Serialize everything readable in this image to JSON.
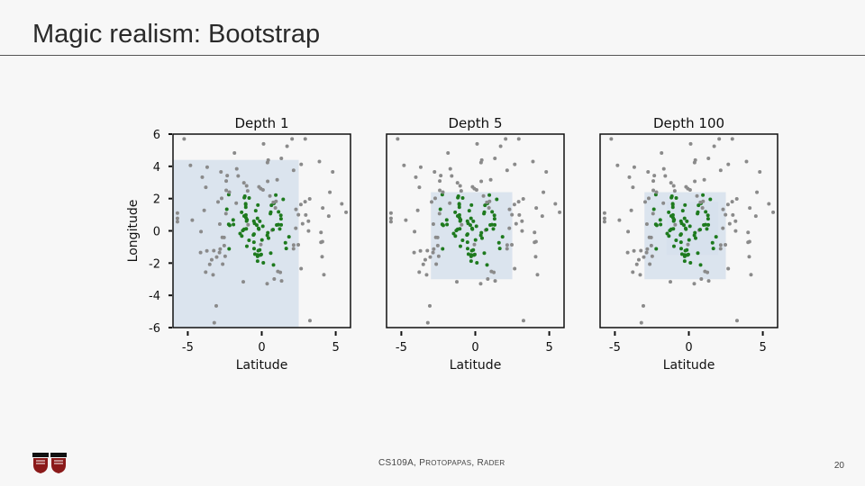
{
  "slide": {
    "title": "Magic realism: Bootstrap",
    "footer_parts": [
      "CS109A, P",
      "ROTOPAPAS",
      ", R",
      "ADER"
    ],
    "page_number": "20"
  },
  "colors": {
    "in_sample": "#1e7a1e",
    "out_sample": "#8a8a8a",
    "region": "#d6e0ec",
    "frame": "#111111"
  },
  "chart_data": [
    {
      "type": "scatter",
      "title": "Depth 1",
      "xlabel": "Latitude",
      "ylabel": "Longitude",
      "xlim": [
        -6,
        6
      ],
      "ylim": [
        -6,
        6
      ],
      "xticks": [
        -5,
        0,
        5
      ],
      "yticks": [
        6,
        4,
        2,
        0,
        -2,
        -4,
        -6
      ],
      "regions": [
        {
          "x0": -6,
          "x1": 2.5,
          "y0": -6,
          "y1": 4.4
        }
      ]
    },
    {
      "type": "scatter",
      "title": "Depth 5",
      "xlabel": "Latitude",
      "ylabel": "",
      "xlim": [
        -6,
        6
      ],
      "ylim": [
        -6,
        6
      ],
      "xticks": [
        -5,
        0,
        5
      ],
      "yticks": [],
      "regions": [
        {
          "x0": -3,
          "x1": 2.5,
          "y0": -3,
          "y1": 2.4
        }
      ]
    },
    {
      "type": "scatter",
      "title": "Depth 100",
      "xlabel": "Latitude",
      "ylabel": "",
      "xlim": [
        -6,
        6
      ],
      "ylim": [
        -6,
        6
      ],
      "xticks": [
        -5,
        0,
        5
      ],
      "yticks": [],
      "regions": [
        {
          "x0": -3,
          "x1": 2.5,
          "y0": -3,
          "y1": 2.4
        },
        {
          "x0": -1.5,
          "x1": 2.0,
          "y0": -1.5,
          "y1": 1.8
        }
      ]
    }
  ]
}
